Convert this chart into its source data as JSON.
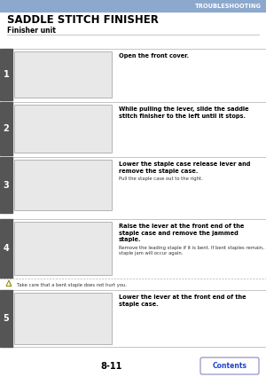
{
  "page_title": "SADDLE STITCH FINISHER",
  "section_title": "Finisher unit",
  "header_text": "TROUBLESHOOTING",
  "page_number": "8-11",
  "bg_color": "#ffffff",
  "header_bar_color": "#8ca8cc",
  "step_num_bg": "#555555",
  "steps": [
    {
      "num": "1",
      "title": "Open the front cover.",
      "body": "",
      "note": ""
    },
    {
      "num": "2",
      "title": "While pulling the lever, slide the saddle\nstitch finisher to the left until it stops.",
      "body": "",
      "note": ""
    },
    {
      "num": "3",
      "title": "Lower the staple case release lever and\nremove the staple case.",
      "body": "Pull the staple case out to the right.",
      "note": ""
    },
    {
      "num": "4",
      "title": "Raise the lever at the front end of the\nstaple case and remove the jammed\nstaple.",
      "body": "Remove the leading staple if it is bent. If bent staples remain, a\nstaple jam will occur again.",
      "note": "Take care that a bent staple does not hurt you."
    },
    {
      "num": "5",
      "title": "Lower the lever at the front end of the\nstaple case.",
      "body": "",
      "note": ""
    }
  ]
}
